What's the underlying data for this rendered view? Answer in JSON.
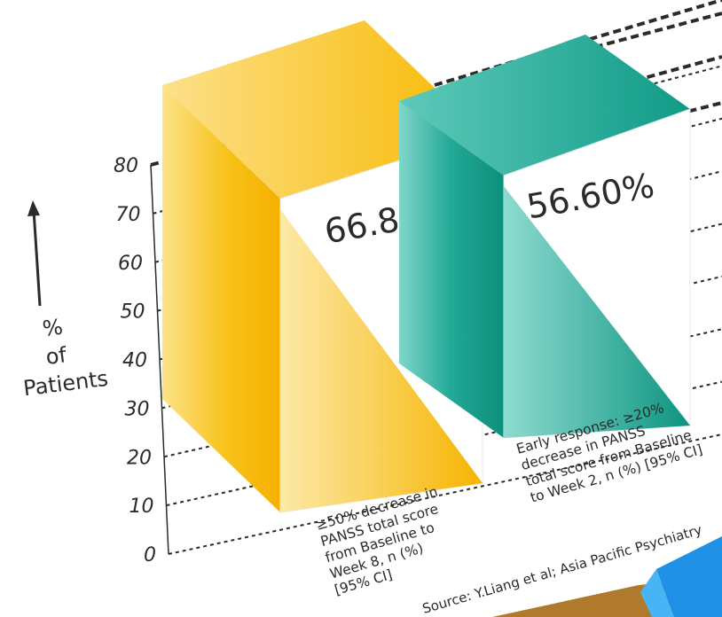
{
  "chart_data": {
    "type": "bar",
    "categories": [
      "≥50% decrease in PANSS total score from Baseline to Week 8, n (%) [95% CI]",
      "Early response: ≥20% decrease in PANSS total score from Baseline to Week 2, n (%) [95% CI]"
    ],
    "values": [
      66.8,
      56.6
    ],
    "value_labels": [
      "66.80%",
      "56.60%"
    ],
    "ylabel": "% of Patients",
    "ylim": [
      0,
      80
    ],
    "y_ticks": [
      0,
      10,
      20,
      30,
      40,
      50,
      60,
      70,
      80
    ],
    "grid": true,
    "colors": {
      "bar1": "#f5b800",
      "bar1_light": "#fde38a",
      "bar2": "#119b87",
      "bar2_light": "#6fd0c3",
      "grid": "#2b2b2b",
      "text": "#2b2b2b"
    },
    "source": "Source: Y.Liang et al; Asia Pacific Psychiatry",
    "category_label_lines": [
      [
        "≥50% decrease in",
        "PANSS total score",
        "from Baseline to",
        "Week 8, n (%)",
        "[95% CI]"
      ],
      [
        "Early response: ≥20%",
        "decrease in PANSS",
        "total score from Baseline",
        "to Week 2, n (%) [95% CI]"
      ]
    ]
  }
}
